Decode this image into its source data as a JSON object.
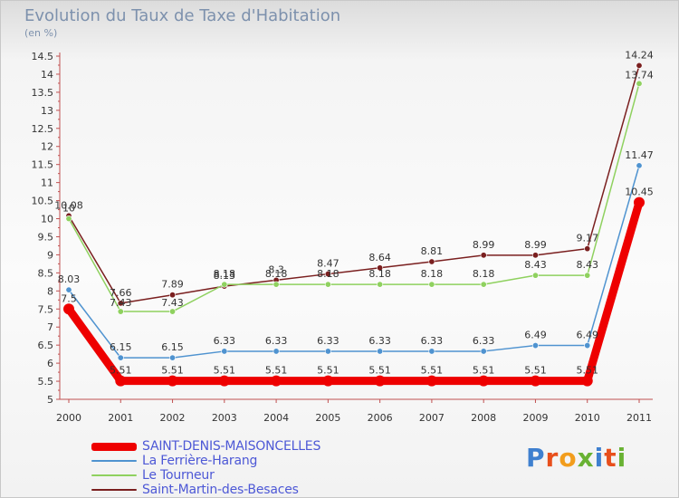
{
  "title": "Evolution du Taux de Taxe d'Habitation",
  "unit": "(en %)",
  "logo": {
    "text": "Proxiti",
    "colors": [
      "#3f80cf",
      "#e84f1c",
      "#f29d1c",
      "#69b233",
      "#3f80cf",
      "#e84f1c",
      "#69b233"
    ]
  },
  "chart_data": {
    "type": "line",
    "title": "Evolution du Taux de Taxe d'Habitation",
    "ylabel": "(en %)",
    "xlabel": "",
    "ylim": [
      5,
      14.5
    ],
    "grid": false,
    "legend_position": "bottom-left",
    "categories": [
      "2000",
      "2001",
      "2002",
      "2003",
      "2004",
      "2005",
      "2006",
      "2007",
      "2008",
      "2009",
      "2010",
      "2011"
    ],
    "y_ticks": [
      "5",
      "5.5",
      "6",
      "6.5",
      "7",
      "7.5",
      "8",
      "8.5",
      "9",
      "9.5",
      "10",
      "10.5",
      "11",
      "11.5",
      "12",
      "12.5",
      "13",
      "13.5",
      "14",
      "14.5"
    ],
    "series": [
      {
        "name": "SAINT-DENIS-MAISONCELLES",
        "color": "#ee0000",
        "emphasis": true,
        "values": [
          7.5,
          5.51,
          5.51,
          5.51,
          5.51,
          5.51,
          5.51,
          5.51,
          5.51,
          5.51,
          5.51,
          10.45
        ],
        "labels": [
          "7.5",
          "5.51",
          "5.51",
          "5.51",
          "5.51",
          "5.51",
          "5.51",
          "5.51",
          "5.51",
          "5.51",
          "5.51",
          "10.45"
        ]
      },
      {
        "name": "La Ferrière-Harang",
        "color": "#4f93d0",
        "emphasis": false,
        "values": [
          8.03,
          6.15,
          6.15,
          6.33,
          6.33,
          6.33,
          6.33,
          6.33,
          6.33,
          6.49,
          6.49,
          11.47
        ],
        "labels": [
          "8.03",
          "6.15",
          "6.15",
          "6.33",
          "6.33",
          "6.33",
          "6.33",
          "6.33",
          "6.33",
          "6.49",
          "6.49",
          "11.47"
        ]
      },
      {
        "name": "Le Tourneur",
        "color": "#8fd15f",
        "emphasis": false,
        "values": [
          10.0,
          7.43,
          7.43,
          8.18,
          8.18,
          8.18,
          8.18,
          8.18,
          8.18,
          8.43,
          8.43,
          13.74
        ],
        "labels": [
          "10",
          "7.43",
          "7.43",
          "8.18",
          "8.18",
          "8.18",
          "8.18",
          "8.18",
          "8.18",
          "8.43",
          "8.43",
          "13.74"
        ]
      },
      {
        "name": "Saint-Martin-des-Besaces",
        "color": "#7a1f1f",
        "emphasis": false,
        "values": [
          10.08,
          7.66,
          7.89,
          8.13,
          8.3,
          8.47,
          8.64,
          8.81,
          8.99,
          8.99,
          9.17,
          14.24
        ],
        "labels": [
          "10.08",
          "7.66",
          "7.89",
          "8.13",
          "8.3",
          "8.47",
          "8.64",
          "8.81",
          "8.99",
          "8.99",
          "9.17",
          "14.24"
        ]
      }
    ]
  }
}
